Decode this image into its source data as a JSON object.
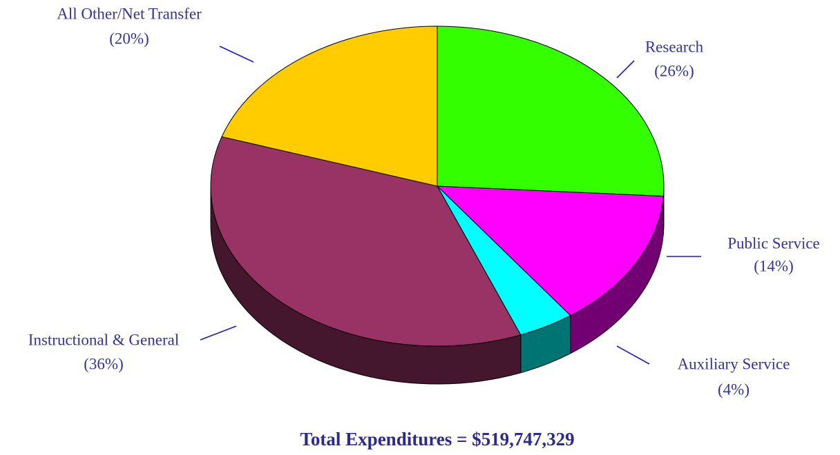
{
  "chart_data": {
    "type": "pie",
    "title": "Total Expenditures = $519,747,329",
    "categories": [
      "Research",
      "Public Service",
      "Auxiliary Service",
      "Instructional & General",
      "All Other/Net Transfer"
    ],
    "values": [
      26,
      14,
      4,
      36,
      20
    ],
    "value_labels": [
      "(26%)",
      "(14%)",
      "(4%)",
      "(36%)",
      "(20%)"
    ],
    "colors": [
      "#33ff00",
      "#ff00ff",
      "#00ffff",
      "#993366",
      "#ffcc00"
    ]
  }
}
